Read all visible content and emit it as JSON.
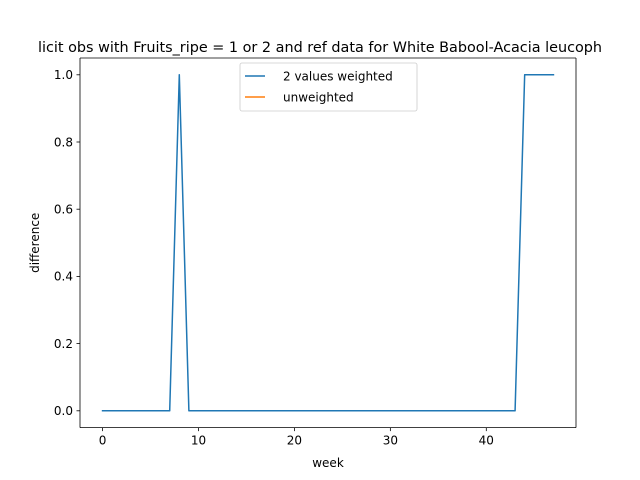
{
  "chart_data": {
    "type": "line",
    "title": "licit obs with Fruits_ripe = 1 or 2 and ref data for White Babool-Acacia leucoph",
    "xlabel": "week",
    "ylabel": "difference",
    "xlim": [
      -2.35,
      49.35
    ],
    "ylim": [
      -0.05,
      1.05
    ],
    "x_ticks": [
      0,
      10,
      20,
      30,
      40
    ],
    "y_ticks": [
      0.0,
      0.2,
      0.4,
      0.6,
      0.8,
      1.0
    ],
    "x_tick_labels": [
      "0",
      "10",
      "20",
      "30",
      "40"
    ],
    "y_tick_labels": [
      "0.0",
      "0.2",
      "0.4",
      "0.6",
      "0.8",
      "1.0"
    ],
    "legend_position": "top-center",
    "series": [
      {
        "name": "2 values weighted",
        "color": "#1f77b4",
        "x": [
          0,
          1,
          2,
          3,
          4,
          5,
          6,
          7,
          8,
          9,
          10,
          11,
          12,
          13,
          14,
          15,
          16,
          17,
          18,
          19,
          20,
          21,
          22,
          23,
          24,
          25,
          26,
          27,
          28,
          29,
          30,
          31,
          32,
          33,
          34,
          35,
          36,
          37,
          38,
          39,
          40,
          41,
          42,
          43,
          44,
          45,
          46,
          47
        ],
        "y": [
          0,
          0,
          0,
          0,
          0,
          0,
          0,
          0,
          1,
          0,
          0,
          0,
          0,
          0,
          0,
          0,
          0,
          0,
          0,
          0,
          0,
          0,
          0,
          0,
          0,
          0,
          0,
          0,
          0,
          0,
          0,
          0,
          0,
          0,
          0,
          0,
          0,
          0,
          0,
          0,
          0,
          0,
          0,
          0,
          1,
          1,
          1,
          1
        ]
      },
      {
        "name": "unweighted",
        "color": "#ff7f0e",
        "x": [],
        "y": []
      }
    ]
  }
}
